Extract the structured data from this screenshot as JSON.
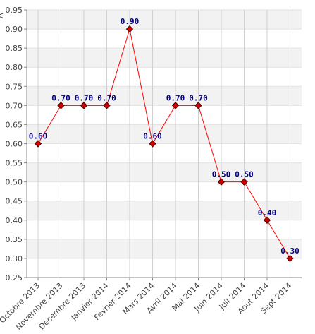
{
  "chart_data": {
    "type": "line",
    "title": "",
    "xlabel": "",
    "ylabel": "A",
    "categories": [
      "Octobre 2013",
      "Novembre 2013",
      "Decembre 2013",
      "Janvier 2014",
      "Fevrier 2014",
      "Mars 2014",
      "Avril 2014",
      "Mai 2014",
      "Juin 2014",
      "Juil 2014",
      "Aout 2014",
      "Sept 2014"
    ],
    "values": [
      0.6,
      0.7,
      0.7,
      0.7,
      0.9,
      0.6,
      0.7,
      0.7,
      0.5,
      0.5,
      0.4,
      0.3
    ],
    "data_labels": [
      "0.60",
      "0.70",
      "0.70",
      "0.70",
      "0.90",
      "0.60",
      "0.70",
      "0.70",
      "0.50",
      "0.50",
      "0.40",
      "0.30"
    ],
    "ylim": [
      0.25,
      0.95
    ],
    "yticks": [
      "0.25",
      "0.30",
      "0.35",
      "0.40",
      "0.45",
      "0.50",
      "0.55",
      "0.60",
      "0.65",
      "0.70",
      "0.75",
      "0.80",
      "0.85",
      "0.90",
      "0.95"
    ],
    "grid": true,
    "legend": "none",
    "colors": {
      "line": "#ff0000",
      "marker_fill": "#cc0000",
      "marker_stroke": "#550000",
      "label": "#000080",
      "band": "#f2f2f2",
      "grid": "#d0d0d0"
    }
  }
}
